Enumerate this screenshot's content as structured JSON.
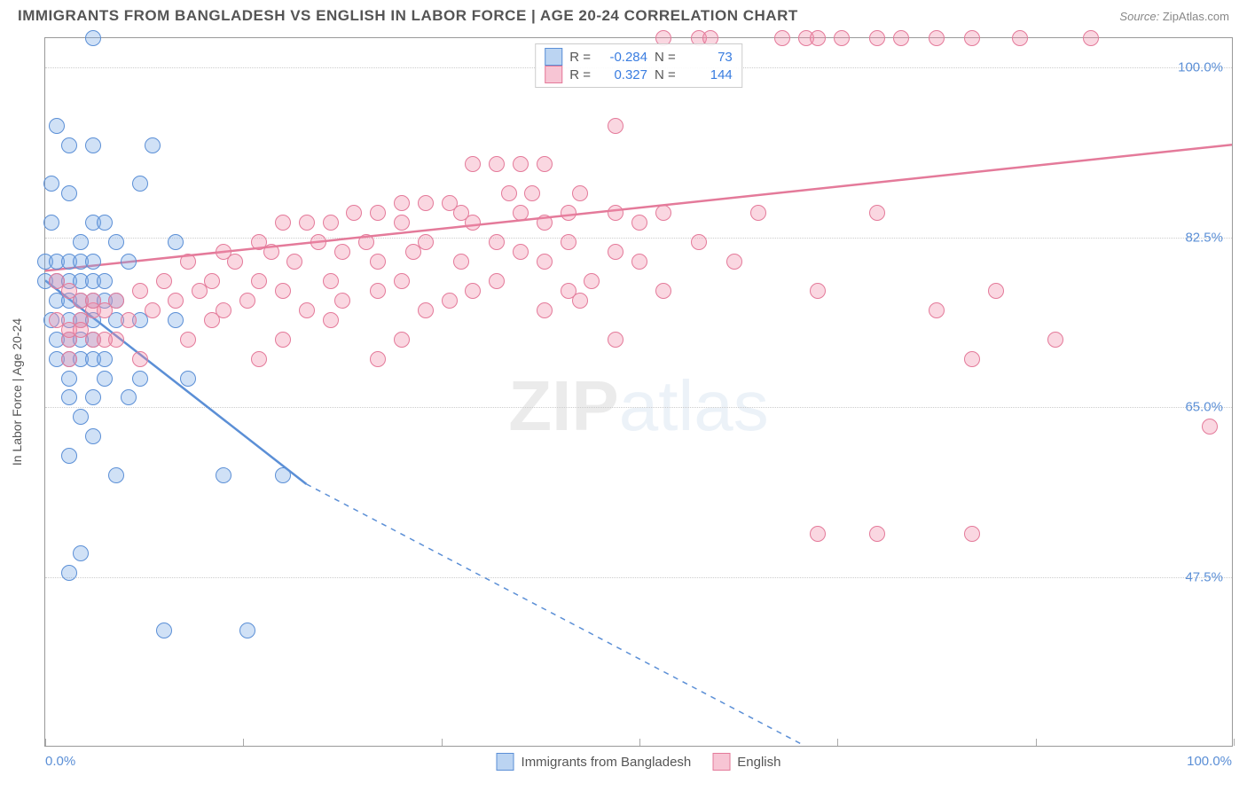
{
  "title": "IMMIGRANTS FROM BANGLADESH VS ENGLISH IN LABOR FORCE | AGE 20-24 CORRELATION CHART",
  "source_label": "Source:",
  "source_value": "ZipAtlas.com",
  "yaxis_title": "In Labor Force | Age 20-24",
  "watermark_bold": "ZIP",
  "watermark_thin": "atlas",
  "chart": {
    "type": "scatter",
    "background_color": "#ffffff",
    "grid_color": "#cccccc",
    "border_color": "#999999",
    "xlim": [
      0,
      100
    ],
    "ylim": [
      30,
      103
    ],
    "xtick_positions": [
      0,
      16.67,
      33.33,
      50,
      66.67,
      83.33,
      100
    ],
    "x_label_min": "0.0%",
    "x_label_max": "100.0%",
    "yticks": [
      {
        "value": 47.5,
        "label": "47.5%"
      },
      {
        "value": 65.0,
        "label": "65.0%"
      },
      {
        "value": 82.5,
        "label": "82.5%"
      },
      {
        "value": 100.0,
        "label": "100.0%"
      }
    ],
    "ytick_color": "#5b8fd6",
    "ytick_fontsize": 15,
    "point_radius": 9,
    "series": [
      {
        "id": "s1",
        "name": "Immigrants from Bangladesh",
        "fill_color": "rgba(120,170,230,0.35)",
        "stroke_color": "#5b8fd6",
        "R": "-0.284",
        "N": "73",
        "trend": {
          "solid": {
            "x1": 0,
            "y1": 78,
            "x2": 22,
            "y2": 57
          },
          "dashed": {
            "x1": 22,
            "y1": 57,
            "x2": 64,
            "y2": 30
          },
          "width": 2.5
        },
        "points": [
          [
            4,
            103
          ],
          [
            1,
            94
          ],
          [
            2,
            92
          ],
          [
            4,
            92
          ],
          [
            9,
            92
          ],
          [
            0.5,
            88
          ],
          [
            8,
            88
          ],
          [
            2,
            87
          ],
          [
            0.5,
            84
          ],
          [
            4,
            84
          ],
          [
            5,
            84
          ],
          [
            3,
            82
          ],
          [
            6,
            82
          ],
          [
            11,
            82
          ],
          [
            0,
            80
          ],
          [
            7,
            80
          ],
          [
            1,
            80
          ],
          [
            2,
            80
          ],
          [
            3,
            80
          ],
          [
            4,
            80
          ],
          [
            0,
            78
          ],
          [
            1,
            78
          ],
          [
            2,
            78
          ],
          [
            3,
            78
          ],
          [
            4,
            78
          ],
          [
            5,
            78
          ],
          [
            1,
            76
          ],
          [
            2,
            76
          ],
          [
            3,
            76
          ],
          [
            4,
            76
          ],
          [
            5,
            76
          ],
          [
            6,
            76
          ],
          [
            0.5,
            74
          ],
          [
            2,
            74
          ],
          [
            3,
            74
          ],
          [
            4,
            74
          ],
          [
            6,
            74
          ],
          [
            8,
            74
          ],
          [
            11,
            74
          ],
          [
            1,
            72
          ],
          [
            2,
            72
          ],
          [
            3,
            72
          ],
          [
            4,
            72
          ],
          [
            1,
            70
          ],
          [
            2,
            70
          ],
          [
            3,
            70
          ],
          [
            4,
            70
          ],
          [
            5,
            70
          ],
          [
            2,
            68
          ],
          [
            5,
            68
          ],
          [
            8,
            68
          ],
          [
            12,
            68
          ],
          [
            2,
            66
          ],
          [
            4,
            66
          ],
          [
            7,
            66
          ],
          [
            3,
            64
          ],
          [
            4,
            62
          ],
          [
            2,
            60
          ],
          [
            6,
            58
          ],
          [
            15,
            58
          ],
          [
            20,
            58
          ],
          [
            3,
            50
          ],
          [
            2,
            48
          ],
          [
            10,
            42
          ],
          [
            17,
            42
          ]
        ]
      },
      {
        "id": "s2",
        "name": "English",
        "fill_color": "rgba(240,140,170,0.35)",
        "stroke_color": "#e47a9a",
        "R": "0.327",
        "N": "144",
        "trend": {
          "solid": {
            "x1": 0,
            "y1": 79,
            "x2": 100,
            "y2": 92
          },
          "width": 2.5
        },
        "points": [
          [
            52,
            103
          ],
          [
            55,
            103
          ],
          [
            56,
            103
          ],
          [
            62,
            103
          ],
          [
            64,
            103
          ],
          [
            65,
            103
          ],
          [
            67,
            103
          ],
          [
            70,
            103
          ],
          [
            72,
            103
          ],
          [
            75,
            103
          ],
          [
            78,
            103
          ],
          [
            82,
            103
          ],
          [
            88,
            103
          ],
          [
            48,
            94
          ],
          [
            36,
            90
          ],
          [
            38,
            90
          ],
          [
            40,
            90
          ],
          [
            42,
            90
          ],
          [
            39,
            87
          ],
          [
            41,
            87
          ],
          [
            45,
            87
          ],
          [
            30,
            86
          ],
          [
            32,
            86
          ],
          [
            34,
            86
          ],
          [
            26,
            85
          ],
          [
            28,
            85
          ],
          [
            35,
            85
          ],
          [
            40,
            85
          ],
          [
            44,
            85
          ],
          [
            48,
            85
          ],
          [
            52,
            85
          ],
          [
            60,
            85
          ],
          [
            70,
            85
          ],
          [
            20,
            84
          ],
          [
            22,
            84
          ],
          [
            24,
            84
          ],
          [
            30,
            84
          ],
          [
            36,
            84
          ],
          [
            42,
            84
          ],
          [
            50,
            84
          ],
          [
            18,
            82
          ],
          [
            23,
            82
          ],
          [
            27,
            82
          ],
          [
            32,
            82
          ],
          [
            38,
            82
          ],
          [
            44,
            82
          ],
          [
            55,
            82
          ],
          [
            15,
            81
          ],
          [
            19,
            81
          ],
          [
            25,
            81
          ],
          [
            31,
            81
          ],
          [
            40,
            81
          ],
          [
            48,
            81
          ],
          [
            12,
            80
          ],
          [
            16,
            80
          ],
          [
            21,
            80
          ],
          [
            28,
            80
          ],
          [
            35,
            80
          ],
          [
            42,
            80
          ],
          [
            50,
            80
          ],
          [
            58,
            80
          ],
          [
            10,
            78
          ],
          [
            14,
            78
          ],
          [
            18,
            78
          ],
          [
            24,
            78
          ],
          [
            30,
            78
          ],
          [
            38,
            78
          ],
          [
            46,
            78
          ],
          [
            8,
            77
          ],
          [
            13,
            77
          ],
          [
            20,
            77
          ],
          [
            28,
            77
          ],
          [
            36,
            77
          ],
          [
            44,
            77
          ],
          [
            52,
            77
          ],
          [
            65,
            77
          ],
          [
            80,
            77
          ],
          [
            6,
            76
          ],
          [
            11,
            76
          ],
          [
            17,
            76
          ],
          [
            25,
            76
          ],
          [
            34,
            76
          ],
          [
            45,
            76
          ],
          [
            4,
            75
          ],
          [
            9,
            75
          ],
          [
            15,
            75
          ],
          [
            22,
            75
          ],
          [
            32,
            75
          ],
          [
            42,
            75
          ],
          [
            75,
            75
          ],
          [
            3,
            74
          ],
          [
            7,
            74
          ],
          [
            14,
            74
          ],
          [
            24,
            74
          ],
          [
            2,
            72
          ],
          [
            6,
            72
          ],
          [
            12,
            72
          ],
          [
            20,
            72
          ],
          [
            30,
            72
          ],
          [
            48,
            72
          ],
          [
            85,
            72
          ],
          [
            2,
            70
          ],
          [
            8,
            70
          ],
          [
            18,
            70
          ],
          [
            28,
            70
          ],
          [
            78,
            70
          ],
          [
            98,
            63
          ],
          [
            65,
            52
          ],
          [
            70,
            52
          ],
          [
            78,
            52
          ],
          [
            1,
            78
          ],
          [
            2,
            77
          ],
          [
            3,
            76
          ],
          [
            4,
            76
          ],
          [
            5,
            75
          ],
          [
            1,
            74
          ],
          [
            2,
            73
          ],
          [
            3,
            73
          ],
          [
            4,
            72
          ],
          [
            5,
            72
          ]
        ]
      }
    ],
    "bottom_legend": [
      {
        "swatch": "s1",
        "label": "Immigrants from Bangladesh"
      },
      {
        "swatch": "s2",
        "label": "English"
      }
    ],
    "stat_legend": {
      "rows": [
        {
          "swatch": "s1",
          "R_label": "R =",
          "R": "-0.284",
          "N_label": "N =",
          "N": "73"
        },
        {
          "swatch": "s2",
          "R_label": "R =",
          "R": "0.327",
          "N_label": "N =",
          "N": "144"
        }
      ]
    }
  }
}
